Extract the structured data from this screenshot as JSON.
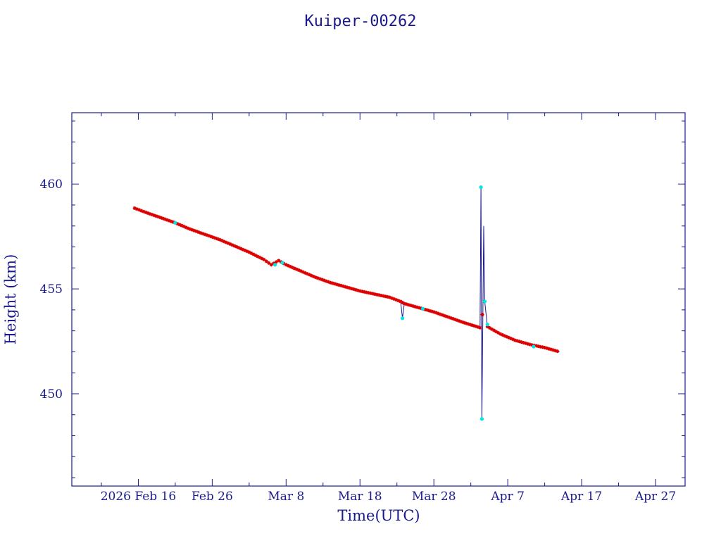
{
  "chart_data": {
    "type": "line",
    "title": "Kuiper-00262",
    "xlabel": "Time(UTC)",
    "ylabel": "Height (km)",
    "x_range": [
      "2026-02-07",
      "2026-05-01"
    ],
    "ylim": [
      445.6,
      463.4
    ],
    "x_ticks": [
      {
        "date": "2026-02-16",
        "label": "2026 Feb 16"
      },
      {
        "date": "2026-02-26",
        "label": "Feb 26"
      },
      {
        "date": "2026-03-08",
        "label": "Mar  8"
      },
      {
        "date": "2026-03-18",
        "label": "Mar 18"
      },
      {
        "date": "2026-03-28",
        "label": "Mar 28"
      },
      {
        "date": "2026-04-07",
        "label": "Apr  7"
      },
      {
        "date": "2026-04-17",
        "label": "Apr 17"
      },
      {
        "date": "2026-04-27",
        "label": "Apr 27"
      }
    ],
    "y_ticks": [
      450,
      455,
      460
    ],
    "grid": false,
    "colors": {
      "axis": "#1a1a8c",
      "line": "#1a1a8c",
      "marker_normal": "#dd0000",
      "marker_outlier": "#00e5e5"
    },
    "series": [
      {
        "points": [
          {
            "t": "2026-02-15 12:00",
            "y": 458.85
          },
          {
            "t": "2026-02-17 00:00",
            "y": 458.65
          },
          {
            "t": "2026-02-19 00:00",
            "y": 458.4
          },
          {
            "t": "2026-02-21 00:00",
            "y": 458.15
          },
          {
            "t": "2026-02-23 00:00",
            "y": 457.85
          },
          {
            "t": "2026-02-25 00:00",
            "y": 457.6
          },
          {
            "t": "2026-02-27 00:00",
            "y": 457.35
          },
          {
            "t": "2026-03-01 00:00",
            "y": 457.05
          },
          {
            "t": "2026-03-03 00:00",
            "y": 456.75
          },
          {
            "t": "2026-03-05 00:00",
            "y": 456.4
          },
          {
            "t": "2026-03-06 00:00",
            "y": 456.15
          },
          {
            "t": "2026-03-07 00:00",
            "y": 456.35
          },
          {
            "t": "2026-03-08 00:00",
            "y": 456.15
          },
          {
            "t": "2026-03-10 00:00",
            "y": 455.85
          },
          {
            "t": "2026-03-12 00:00",
            "y": 455.55
          },
          {
            "t": "2026-03-14 00:00",
            "y": 455.3
          },
          {
            "t": "2026-03-16 00:00",
            "y": 455.1
          },
          {
            "t": "2026-03-18 00:00",
            "y": 454.9
          },
          {
            "t": "2026-03-20 00:00",
            "y": 454.75
          },
          {
            "t": "2026-03-22 00:00",
            "y": 454.6
          },
          {
            "t": "2026-03-23 12:00",
            "y": 454.4
          },
          {
            "t": "2026-03-23 18:00",
            "y": 453.6
          },
          {
            "t": "2026-03-24 00:00",
            "y": 454.3
          },
          {
            "t": "2026-03-26 00:00",
            "y": 454.1
          },
          {
            "t": "2026-03-28 00:00",
            "y": 453.9
          },
          {
            "t": "2026-03-30 00:00",
            "y": 453.65
          },
          {
            "t": "2026-04-01 00:00",
            "y": 453.4
          },
          {
            "t": "2026-04-03 06:00",
            "y": 453.15
          },
          {
            "t": "2026-04-03 09:00",
            "y": 459.85
          },
          {
            "t": "2026-04-03 12:00",
            "y": 448.8
          },
          {
            "t": "2026-04-03 18:00",
            "y": 458.0
          },
          {
            "t": "2026-04-03 21:00",
            "y": 454.4
          },
          {
            "t": "2026-04-04 06:00",
            "y": 453.2
          },
          {
            "t": "2026-04-06 00:00",
            "y": 452.85
          },
          {
            "t": "2026-04-08 00:00",
            "y": 452.55
          },
          {
            "t": "2026-04-10 00:00",
            "y": 452.35
          },
          {
            "t": "2026-04-12 00:00",
            "y": 452.2
          },
          {
            "t": "2026-04-14 00:00",
            "y": 452.0
          }
        ],
        "outliers": [
          {
            "t": "2026-02-21 00:00",
            "y": 458.15
          },
          {
            "t": "2026-03-06 12:00",
            "y": 456.15
          },
          {
            "t": "2026-03-07 12:00",
            "y": 456.25
          },
          {
            "t": "2026-03-23 18:00",
            "y": 453.6
          },
          {
            "t": "2026-03-26 12:00",
            "y": 454.05
          },
          {
            "t": "2026-04-03 09:00",
            "y": 459.85
          },
          {
            "t": "2026-04-03 12:00",
            "y": 448.8
          },
          {
            "t": "2026-04-03 21:00",
            "y": 454.4
          },
          {
            "t": "2026-04-04 06:00",
            "y": 453.3
          },
          {
            "t": "2026-04-10 12:00",
            "y": 452.25
          }
        ]
      }
    ]
  }
}
